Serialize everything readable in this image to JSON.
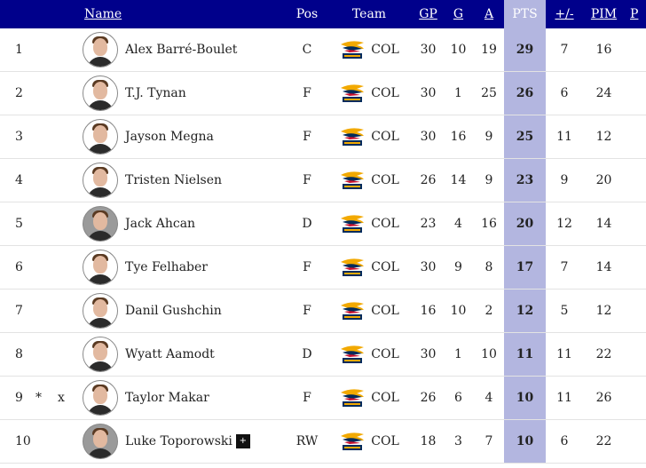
{
  "table": {
    "columns": {
      "name": "Name",
      "pos": "Pos",
      "team": "Team",
      "gp": "GP",
      "g": "G",
      "a": "A",
      "pts": "PTS",
      "plus_minus": "+/-",
      "pim": "PIM",
      "partial": "P"
    },
    "rows": [
      {
        "rank": "1",
        "flag1": "",
        "flag2": "",
        "name": "Alex Barré-Boulet",
        "badge": "",
        "pos": "C",
        "team": "COL",
        "gp": "30",
        "g": "10",
        "a": "19",
        "pts": "29",
        "pm": "7",
        "pim": "16",
        "avatar_dark": false
      },
      {
        "rank": "2",
        "flag1": "",
        "flag2": "",
        "name": "T.J. Tynan",
        "badge": "",
        "pos": "F",
        "team": "COL",
        "gp": "30",
        "g": "1",
        "a": "25",
        "pts": "26",
        "pm": "6",
        "pim": "24",
        "avatar_dark": false
      },
      {
        "rank": "3",
        "flag1": "",
        "flag2": "",
        "name": "Jayson Megna",
        "badge": "",
        "pos": "F",
        "team": "COL",
        "gp": "30",
        "g": "16",
        "a": "9",
        "pts": "25",
        "pm": "11",
        "pim": "12",
        "avatar_dark": false
      },
      {
        "rank": "4",
        "flag1": "",
        "flag2": "",
        "name": "Tristen Nielsen",
        "badge": "",
        "pos": "F",
        "team": "COL",
        "gp": "26",
        "g": "14",
        "a": "9",
        "pts": "23",
        "pm": "9",
        "pim": "20",
        "avatar_dark": false
      },
      {
        "rank": "5",
        "flag1": "",
        "flag2": "",
        "name": "Jack Ahcan",
        "badge": "",
        "pos": "D",
        "team": "COL",
        "gp": "23",
        "g": "4",
        "a": "16",
        "pts": "20",
        "pm": "12",
        "pim": "14",
        "avatar_dark": true
      },
      {
        "rank": "6",
        "flag1": "",
        "flag2": "",
        "name": "Tye Felhaber",
        "badge": "",
        "pos": "F",
        "team": "COL",
        "gp": "30",
        "g": "9",
        "a": "8",
        "pts": "17",
        "pm": "7",
        "pim": "14",
        "avatar_dark": false
      },
      {
        "rank": "7",
        "flag1": "",
        "flag2": "",
        "name": "Danil Gushchin",
        "badge": "",
        "pos": "F",
        "team": "COL",
        "gp": "16",
        "g": "10",
        "a": "2",
        "pts": "12",
        "pm": "5",
        "pim": "12",
        "avatar_dark": false
      },
      {
        "rank": "8",
        "flag1": "",
        "flag2": "",
        "name": "Wyatt Aamodt",
        "badge": "",
        "pos": "D",
        "team": "COL",
        "gp": "30",
        "g": "1",
        "a": "10",
        "pts": "11",
        "pm": "11",
        "pim": "22",
        "avatar_dark": false
      },
      {
        "rank": "9",
        "flag1": "*",
        "flag2": "x",
        "name": "Taylor Makar",
        "badge": "",
        "pos": "F",
        "team": "COL",
        "gp": "26",
        "g": "6",
        "a": "4",
        "pts": "10",
        "pm": "11",
        "pim": "26",
        "avatar_dark": false
      },
      {
        "rank": "10",
        "flag1": "",
        "flag2": "",
        "name": "Luke Toporowski",
        "badge": "+",
        "pos": "RW",
        "team": "COL",
        "gp": "18",
        "g": "3",
        "a": "7",
        "pts": "10",
        "pm": "6",
        "pim": "22",
        "avatar_dark": true
      }
    ]
  },
  "colors": {
    "header_bg": "#00008b",
    "pts_highlight": "#b3b6e0",
    "team_logo_red": "#c8102e",
    "team_logo_navy": "#002b5c",
    "team_logo_gold": "#f2a900"
  }
}
